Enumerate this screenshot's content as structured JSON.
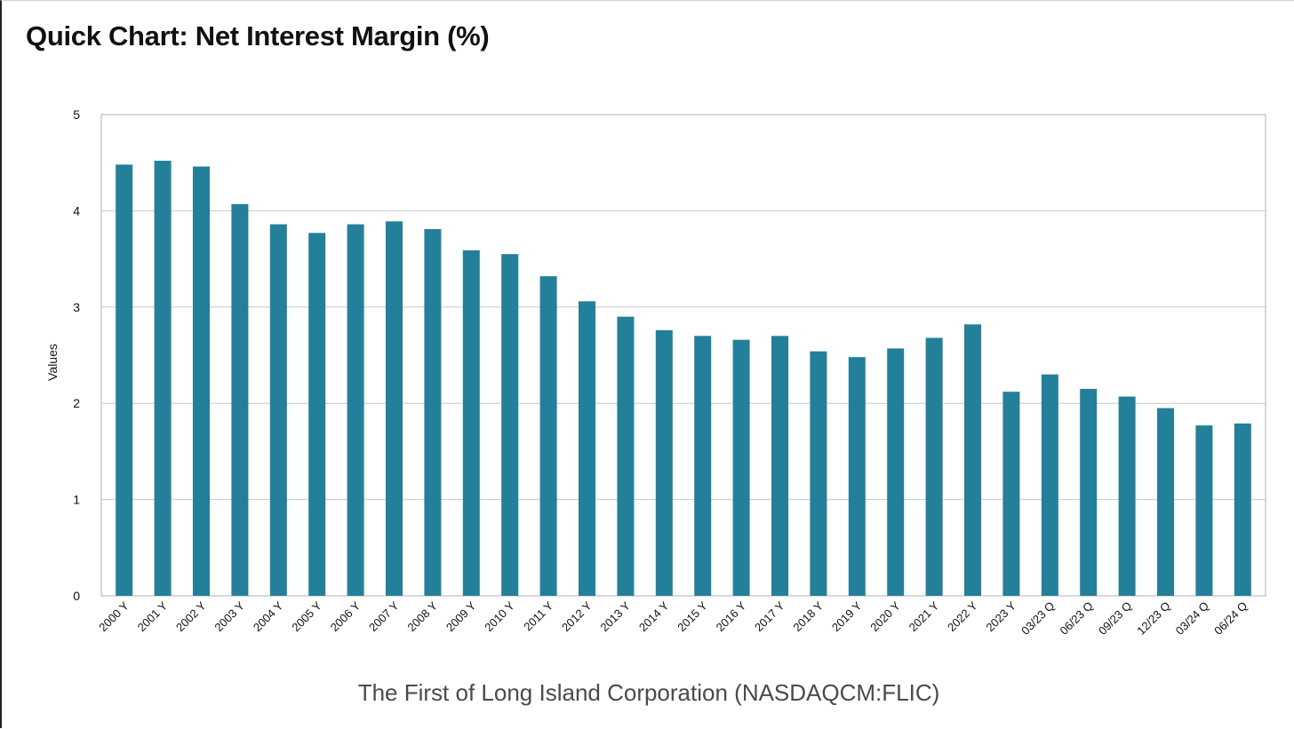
{
  "page": {
    "title": "Quick Chart: Net Interest Margin (%)",
    "company": "The First of Long Island Corporation (NASDAQCM:FLIC)"
  },
  "colors": {
    "bar": "#23809a",
    "grid": "#c8c8c8",
    "plot_border": "#bdbdbd",
    "text": "#111111"
  },
  "chart_data": {
    "type": "bar",
    "title": "Quick Chart: Net Interest Margin (%)",
    "xlabel": "",
    "ylabel": "Values",
    "ylim": [
      0,
      5
    ],
    "yticks": [
      0,
      1,
      2,
      3,
      4,
      5
    ],
    "grid": true,
    "legend": "none",
    "categories": [
      "2000 Y",
      "2001 Y",
      "2002 Y",
      "2003 Y",
      "2004 Y",
      "2005 Y",
      "2006 Y",
      "2007 Y",
      "2008 Y",
      "2009 Y",
      "2010 Y",
      "2011 Y",
      "2012 Y",
      "2013 Y",
      "2014 Y",
      "2015 Y",
      "2016 Y",
      "2017 Y",
      "2018 Y",
      "2019 Y",
      "2020 Y",
      "2021 Y",
      "2022 Y",
      "2023 Y",
      "03/23 Q",
      "06/23 Q",
      "09/23 Q",
      "12/23 Q",
      "03/24 Q",
      "06/24 Q"
    ],
    "values": [
      4.48,
      4.52,
      4.46,
      4.07,
      3.86,
      3.77,
      3.86,
      3.89,
      3.81,
      3.59,
      3.55,
      3.32,
      3.06,
      2.9,
      2.76,
      2.7,
      2.66,
      2.7,
      2.54,
      2.48,
      2.57,
      2.68,
      2.82,
      2.12,
      2.3,
      2.15,
      2.07,
      1.95,
      1.77,
      1.79
    ]
  }
}
